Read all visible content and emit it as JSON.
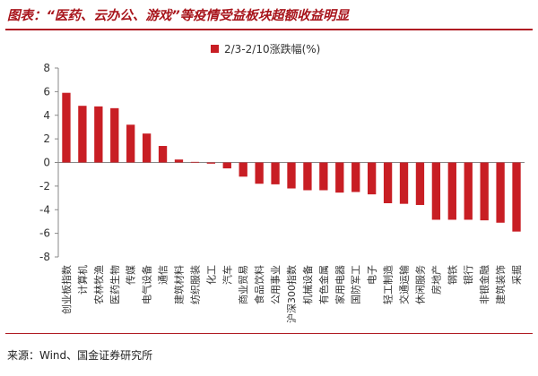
{
  "header": {
    "title": "图表：“医药、云办公、游戏”等疫情受益板块超额收益明显"
  },
  "footer": {
    "source": "来源：Wind、国金证券研究所"
  },
  "colors": {
    "accent": "#b01c23",
    "bar": "#c81e24",
    "axis": "#888888",
    "text": "#333333"
  },
  "chart_data": {
    "type": "bar",
    "title": "",
    "xlabel": "",
    "ylabel": "",
    "legend": {
      "position": "top-center",
      "entries": [
        "2/3-2/10涨跌幅(%)"
      ]
    },
    "ylim": [
      -8,
      8
    ],
    "yticks": [
      -8,
      -6,
      -4,
      -2,
      0,
      2,
      4,
      6,
      8
    ],
    "grid": false,
    "categories": [
      "创业板指数",
      "计算机",
      "农林牧渔",
      "医药生物",
      "传媒",
      "电气设备",
      "通信",
      "建筑材料",
      "纺织服装",
      "化工",
      "汽车",
      "商业贸易",
      "食品饮料",
      "公用事业",
      "沪深300指数",
      "机械设备",
      "有色金属",
      "家用电器",
      "国防军工",
      "电子",
      "轻工制造",
      "交通运输",
      "休闲服务",
      "房地产",
      "钢铁",
      "银行",
      "非银金融",
      "建筑装饰",
      "采掘"
    ],
    "series": [
      {
        "name": "2/3-2/10涨跌幅(%)",
        "values": [
          5.9,
          4.8,
          4.75,
          4.6,
          3.2,
          2.45,
          1.4,
          0.25,
          0.05,
          -0.1,
          -0.5,
          -1.2,
          -1.8,
          -1.85,
          -2.2,
          -2.35,
          -2.35,
          -2.55,
          -2.5,
          -2.7,
          -3.45,
          -3.5,
          -3.6,
          -4.85,
          -4.85,
          -4.85,
          -4.9,
          -5.1,
          -5.85
        ]
      }
    ]
  }
}
